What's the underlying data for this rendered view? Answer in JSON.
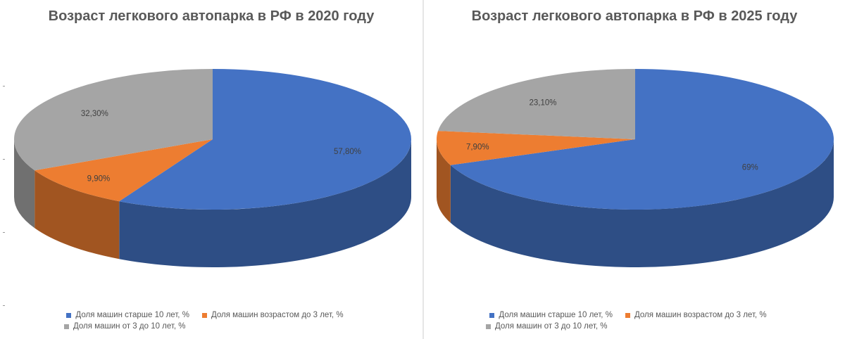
{
  "chart_data": [
    {
      "type": "pie",
      "title": "Возраст легкового автопарка в РФ в 2020 году",
      "categories": [
        "Доля машин старше 10 лет, %",
        "Доля машин возрастом до 3 лет, %",
        "Доля машин от 3 до 10 лет, %"
      ],
      "values": [
        57.8,
        9.9,
        32.3
      ],
      "data_labels": [
        "57,80%",
        "9,90%",
        "32,30%"
      ],
      "colors": [
        "#4472C4",
        "#ED7D31",
        "#A5A5A5"
      ],
      "legend": "bottom"
    },
    {
      "type": "pie",
      "title": "Возраст легкового автопарка в РФ в 2025 году",
      "categories": [
        "Доля машин старше 10 лет, %",
        "Доля машин возрастом до 3 лет, %",
        "Доля машин от 3 до 10 лет, %"
      ],
      "values": [
        69,
        7.9,
        23.1
      ],
      "data_labels": [
        "69%",
        "7,90%",
        "23,10%"
      ],
      "colors": [
        "#4472C4",
        "#ED7D31",
        "#A5A5A5"
      ],
      "legend": "bottom"
    }
  ]
}
